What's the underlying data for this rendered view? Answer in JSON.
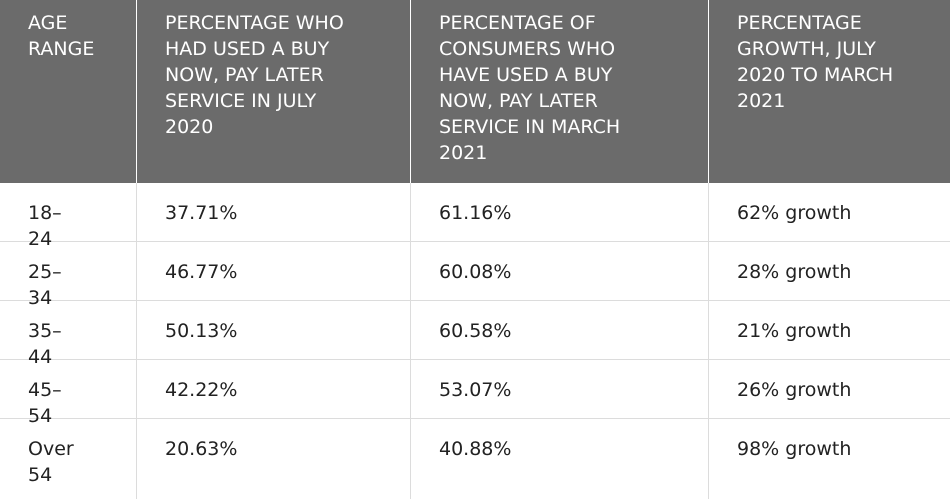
{
  "table": {
    "header": [
      "AGE RANGE",
      "PERCENTAGE WHO HAD USED A BUY NOW, PAY LATER SERVICE IN JULY 2020",
      "PERCENTAGE OF CONSUMERS WHO HAVE USED A BUY NOW, PAY LATER SERVICE IN MARCH 2021",
      "PERCENTAGE GROWTH, JULY 2020 TO MARCH 2021"
    ],
    "rows": [
      [
        "18–24",
        "37.71%",
        "61.16%",
        "62% growth"
      ],
      [
        "25–34",
        "46.77%",
        "60.08%",
        "28% growth"
      ],
      [
        "35–44",
        "50.13%",
        "60.58%",
        "21% growth"
      ],
      [
        "45–54",
        "42.22%",
        "53.07%",
        "26% growth"
      ],
      [
        "Over 54",
        "20.63%",
        "40.88%",
        "98% growth"
      ]
    ]
  }
}
